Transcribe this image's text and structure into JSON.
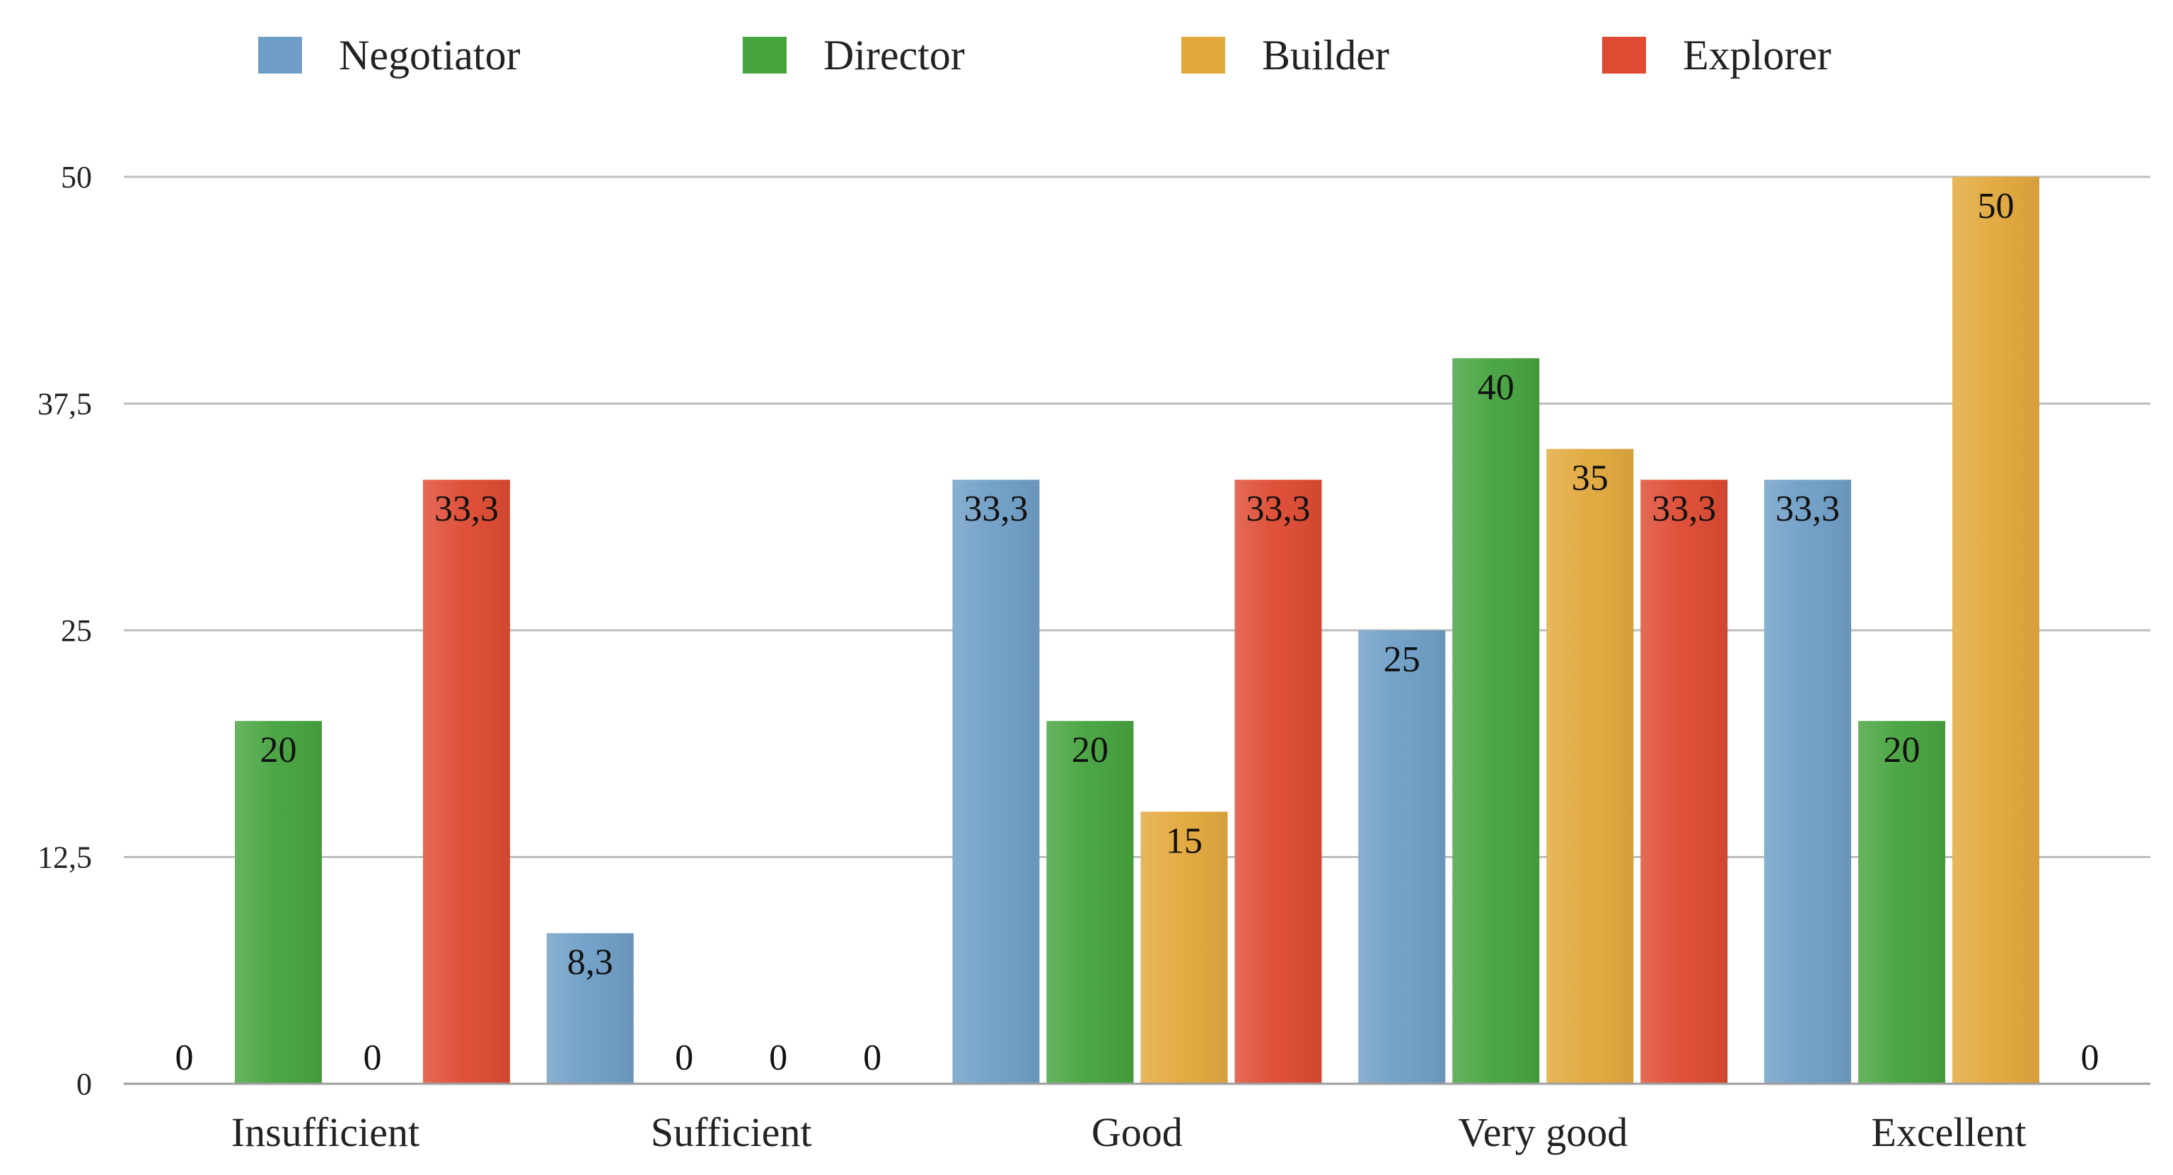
{
  "chart_data": {
    "type": "bar",
    "title": "",
    "xlabel": "",
    "ylabel": "",
    "ylim": [
      0,
      50
    ],
    "yticks": [
      0,
      12.5,
      25,
      37.5,
      50
    ],
    "ytick_labels": [
      "0",
      "12,5",
      "25",
      "37,5",
      "50"
    ],
    "categories": [
      "Insufficient",
      "Sufficient",
      "Good",
      "Very good",
      "Excellent"
    ],
    "legend_position": "top",
    "grid": true,
    "series": [
      {
        "name": "Negotiator",
        "color": "#6f9ec6",
        "values": [
          0,
          8.3,
          33.3,
          25,
          33.3
        ],
        "value_labels": [
          "0",
          "8,3",
          "33,3",
          "25",
          "33,3"
        ]
      },
      {
        "name": "Director",
        "color": "#46a33e",
        "values": [
          20,
          0,
          20,
          40,
          20
        ],
        "value_labels": [
          "20",
          "0",
          "20",
          "40",
          "20"
        ]
      },
      {
        "name": "Builder",
        "color": "#e2a83c",
        "values": [
          0,
          0,
          15,
          35,
          50
        ],
        "value_labels": [
          "0",
          "0",
          "15",
          "35",
          "50"
        ]
      },
      {
        "name": "Explorer",
        "color": "#de4a32",
        "values": [
          33.3,
          0,
          33.3,
          33.3,
          0
        ],
        "value_labels": [
          "33,3",
          "0",
          "33,3",
          "33,3",
          "0"
        ]
      }
    ]
  }
}
